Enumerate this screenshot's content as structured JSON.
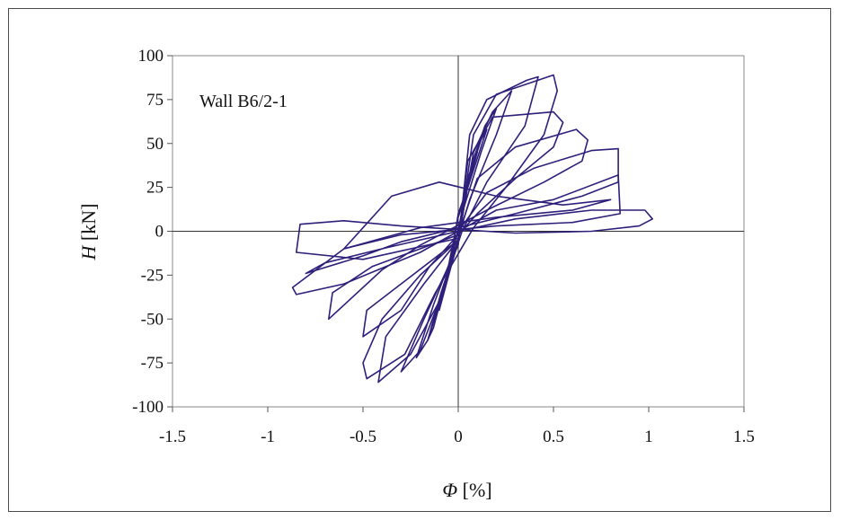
{
  "chart_data": {
    "type": "line",
    "annotation": "Wall B6/2-1",
    "xlabel_var": "Φ",
    "xlabel_unit": " [%]",
    "ylabel_var": "H",
    "ylabel_unit": " [kN]",
    "xlim": [
      -1.5,
      1.5
    ],
    "ylim": [
      -100,
      100
    ],
    "xticks": [
      -1.5,
      -1,
      -0.5,
      0,
      0.5,
      1,
      1.5
    ],
    "xtick_labels": [
      "-1.5",
      "-1",
      "-0.5",
      "0",
      "0.5",
      "1",
      "1.5"
    ],
    "yticks": [
      -100,
      -75,
      -50,
      -25,
      0,
      25,
      50,
      75,
      100
    ],
    "ytick_labels": [
      "-100",
      "-75",
      "-50",
      "-25",
      "0",
      "25",
      "50",
      "75",
      "100"
    ],
    "grid": false,
    "line_color": "#2e1f7a",
    "series": [
      {
        "values": [
          [
            0,
            0
          ],
          [
            0.05,
            30
          ],
          [
            0.1,
            45
          ],
          [
            0.05,
            25
          ],
          [
            0,
            10
          ],
          [
            -0.05,
            -25
          ],
          [
            -0.1,
            -45
          ],
          [
            -0.05,
            -25
          ],
          [
            0,
            -5
          ]
        ]
      },
      {
        "values": [
          [
            0,
            -5
          ],
          [
            0.06,
            32
          ],
          [
            0.12,
            52
          ],
          [
            0.15,
            58
          ],
          [
            0.08,
            35
          ],
          [
            0,
            8
          ],
          [
            -0.07,
            -30
          ],
          [
            -0.13,
            -55
          ],
          [
            -0.16,
            -62
          ],
          [
            -0.09,
            -35
          ],
          [
            0,
            -5
          ]
        ]
      },
      {
        "values": [
          [
            0,
            -5
          ],
          [
            0.07,
            38
          ],
          [
            0.14,
            60
          ],
          [
            0.2,
            70
          ],
          [
            0.12,
            45
          ],
          [
            0.02,
            10
          ],
          [
            -0.08,
            -35
          ],
          [
            -0.16,
            -62
          ],
          [
            -0.22,
            -72
          ],
          [
            -0.13,
            -42
          ],
          [
            0,
            -5
          ]
        ]
      },
      {
        "values": [
          [
            0,
            -5
          ],
          [
            0.08,
            45
          ],
          [
            0.18,
            68
          ],
          [
            0.28,
            80
          ],
          [
            0.2,
            55
          ],
          [
            0.06,
            18
          ],
          [
            -0.1,
            -40
          ],
          [
            -0.2,
            -68
          ],
          [
            -0.3,
            -80
          ],
          [
            -0.18,
            -50
          ],
          [
            0,
            -8
          ]
        ]
      },
      {
        "values": [
          [
            0,
            -8
          ],
          [
            0.06,
            55
          ],
          [
            0.15,
            75
          ],
          [
            0.36,
            86
          ],
          [
            0.42,
            88
          ],
          [
            0.35,
            60
          ],
          [
            0.15,
            28
          ],
          [
            0.02,
            0
          ],
          [
            -0.1,
            -40
          ],
          [
            -0.25,
            -70
          ],
          [
            -0.42,
            -86
          ],
          [
            -0.38,
            -60
          ],
          [
            -0.18,
            -30
          ],
          [
            0,
            -5
          ]
        ]
      },
      {
        "values": [
          [
            0,
            -5
          ],
          [
            0.08,
            55
          ],
          [
            0.2,
            78
          ],
          [
            0.5,
            89
          ],
          [
            0.52,
            80
          ],
          [
            0.45,
            55
          ],
          [
            0.25,
            25
          ],
          [
            0.08,
            2
          ],
          [
            -0.12,
            -35
          ],
          [
            -0.28,
            -70
          ],
          [
            -0.48,
            -84
          ],
          [
            -0.5,
            -75
          ],
          [
            -0.4,
            -50
          ],
          [
            -0.2,
            -25
          ],
          [
            0,
            -5
          ]
        ]
      },
      {
        "values": [
          [
            0,
            -5
          ],
          [
            0.05,
            40
          ],
          [
            0.18,
            65
          ],
          [
            0.5,
            68
          ],
          [
            0.55,
            62
          ],
          [
            0.5,
            48
          ],
          [
            0.3,
            30
          ],
          [
            0.1,
            10
          ],
          [
            -0.15,
            -20
          ],
          [
            -0.3,
            -45
          ],
          [
            -0.5,
            -60
          ],
          [
            -0.48,
            -45
          ],
          [
            -0.3,
            -30
          ],
          [
            0,
            -5
          ]
        ]
      },
      {
        "values": [
          [
            0,
            -2
          ],
          [
            0.1,
            30
          ],
          [
            0.3,
            48
          ],
          [
            0.62,
            58
          ],
          [
            0.68,
            52
          ],
          [
            0.65,
            40
          ],
          [
            0.45,
            28
          ],
          [
            0.15,
            12
          ],
          [
            -0.2,
            -8
          ],
          [
            -0.4,
            -22
          ],
          [
            -0.68,
            -50
          ],
          [
            -0.66,
            -35
          ],
          [
            -0.45,
            -20
          ],
          [
            0,
            -2
          ]
        ]
      },
      {
        "values": [
          [
            0,
            0
          ],
          [
            0.15,
            22
          ],
          [
            0.4,
            36
          ],
          [
            0.7,
            46
          ],
          [
            0.84,
            47
          ],
          [
            0.84,
            28
          ],
          [
            0.65,
            20
          ],
          [
            0.3,
            10
          ],
          [
            -0.3,
            -6
          ],
          [
            -0.5,
            -14
          ],
          [
            -0.8,
            -24
          ],
          [
            -0.7,
            -18
          ],
          [
            -0.4,
            -10
          ],
          [
            0,
            0
          ]
        ]
      },
      {
        "values": [
          [
            0,
            0
          ],
          [
            0.2,
            12
          ],
          [
            0.5,
            18
          ],
          [
            0.84,
            32
          ],
          [
            0.85,
            10
          ],
          [
            0.6,
            5
          ],
          [
            0.2,
            3
          ],
          [
            -0.3,
            -2
          ],
          [
            -0.6,
            -10
          ],
          [
            -0.87,
            -32
          ],
          [
            -0.85,
            -36
          ],
          [
            -0.6,
            -30
          ],
          [
            -0.2,
            -12
          ],
          [
            0,
            0
          ]
        ]
      },
      {
        "values": [
          [
            0,
            0
          ],
          [
            0.3,
            7
          ],
          [
            0.7,
            12
          ],
          [
            0.98,
            12
          ],
          [
            1.02,
            7
          ],
          [
            0.95,
            3
          ],
          [
            0.7,
            0
          ],
          [
            0.3,
            -1
          ],
          [
            -0.3,
            3
          ],
          [
            -0.6,
            6
          ],
          [
            -0.83,
            4
          ],
          [
            -0.85,
            -12
          ],
          [
            -0.5,
            -16
          ],
          [
            0,
            -4
          ]
        ]
      },
      {
        "values": [
          [
            -0.6,
            -10
          ],
          [
            -0.35,
            20
          ],
          [
            -0.1,
            28
          ],
          [
            0.2,
            20
          ],
          [
            0.55,
            15
          ],
          [
            0.8,
            18
          ],
          [
            0.6,
            12
          ],
          [
            0.2,
            8
          ],
          [
            -0.2,
            2
          ],
          [
            -0.6,
            -10
          ]
        ]
      }
    ]
  }
}
